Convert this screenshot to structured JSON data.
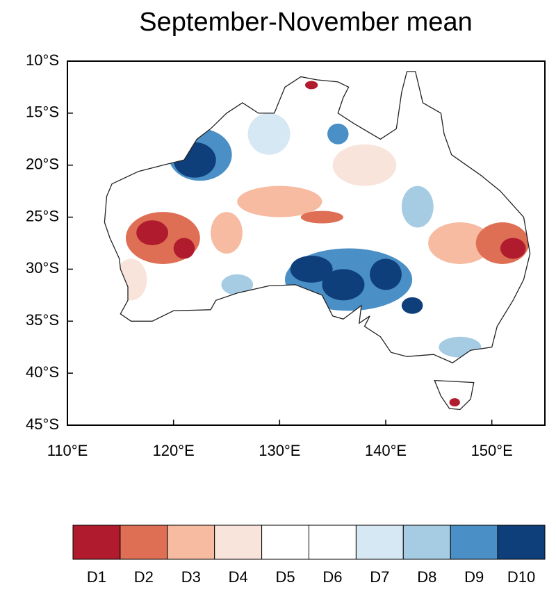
{
  "chart_data": {
    "type": "map",
    "title": "September-November mean",
    "xlim": [
      110,
      155
    ],
    "ylim": [
      -45,
      -10
    ],
    "xticks": [
      {
        "value": 110,
        "label": "110°E"
      },
      {
        "value": 120,
        "label": "120°E"
      },
      {
        "value": 130,
        "label": "130°E"
      },
      {
        "value": 140,
        "label": "140°E"
      },
      {
        "value": 150,
        "label": "150°E"
      }
    ],
    "yticks": [
      {
        "value": -10,
        "label": "10°S"
      },
      {
        "value": -15,
        "label": "15°S"
      },
      {
        "value": -20,
        "label": "20°S"
      },
      {
        "value": -25,
        "label": "25°S"
      },
      {
        "value": -30,
        "label": "30°S"
      },
      {
        "value": -35,
        "label": "35°S"
      },
      {
        "value": -40,
        "label": "40°S"
      },
      {
        "value": -45,
        "label": "45°S"
      }
    ],
    "legend": {
      "categories": [
        "D1",
        "D2",
        "D3",
        "D4",
        "D5",
        "D6",
        "D7",
        "D8",
        "D9",
        "D10"
      ],
      "colors": [
        "#b01c2e",
        "#de6f55",
        "#f6bba1",
        "#f9e4db",
        "#ffffff",
        "#ffffff",
        "#d6e8f3",
        "#a6cce4",
        "#4a8fc6",
        "#0f3f7b"
      ]
    }
  }
}
